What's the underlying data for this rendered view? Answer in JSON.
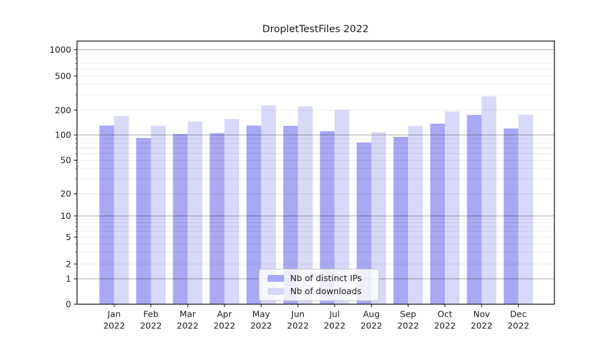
{
  "chart_data": {
    "type": "bar",
    "title": "DropletTestFiles 2022",
    "categories": [
      {
        "label": "Jan",
        "sublabel": "2022"
      },
      {
        "label": "Feb",
        "sublabel": "2022"
      },
      {
        "label": "Mar",
        "sublabel": "2022"
      },
      {
        "label": "Apr",
        "sublabel": "2022"
      },
      {
        "label": "May",
        "sublabel": "2022"
      },
      {
        "label": "Jun",
        "sublabel": "2022"
      },
      {
        "label": "Jul",
        "sublabel": "2022"
      },
      {
        "label": "Aug",
        "sublabel": "2022"
      },
      {
        "label": "Sep",
        "sublabel": "2022"
      },
      {
        "label": "Oct",
        "sublabel": "2022"
      },
      {
        "label": "Nov",
        "sublabel": "2022"
      },
      {
        "label": "Dec",
        "sublabel": "2022"
      }
    ],
    "series": [
      {
        "name": "Nb of distinct IPs",
        "color": "#a8a8f4",
        "values": [
          130,
          92,
          103,
          105,
          130,
          129,
          111,
          81,
          95,
          137,
          175,
          120
        ]
      },
      {
        "name": "Nb of downloads",
        "color": "#d8d8f8",
        "values": [
          170,
          129,
          145,
          156,
          227,
          222,
          201,
          108,
          128,
          192,
          290,
          176
        ]
      }
    ],
    "yticks": [
      0,
      1,
      2,
      5,
      10,
      20,
      50,
      100,
      200,
      500,
      1000
    ],
    "yscale": "symlog (asinh-like, linear near 0)",
    "xlabel": "",
    "ylabel": "",
    "grid": "major and minor horizontal gridlines, drawn above bars",
    "legend_position": "lower center"
  }
}
